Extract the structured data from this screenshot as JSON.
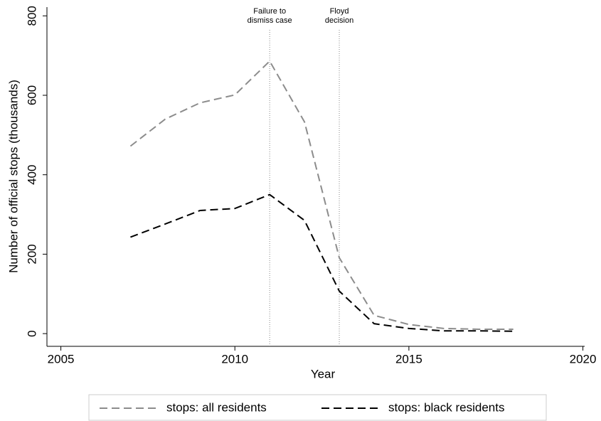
{
  "chart_data": {
    "type": "line",
    "x_label": "Year",
    "y_label": "Number of official stops (thousands)",
    "x": [
      2007,
      2008,
      2009,
      2010,
      2011,
      2012,
      2013,
      2014,
      2015,
      2016,
      2017,
      2018
    ],
    "series": [
      {
        "name": "stops: all residents",
        "color": "#8c8c8c",
        "values": [
          472,
          540,
          581,
          601,
          686,
          533,
          191,
          46,
          23,
          13,
          11,
          11
        ]
      },
      {
        "name": "stops: black residents",
        "color": "#000000",
        "values": [
          243,
          276,
          310,
          315,
          350,
          285,
          107,
          25,
          13,
          7,
          7,
          6
        ]
      }
    ],
    "xlim": [
      2004.6,
      2020.05
    ],
    "xticks": [
      2005,
      2010,
      2015,
      2020
    ],
    "ylim": [
      -32,
      822
    ],
    "yticks": [
      0,
      200,
      400,
      600,
      800
    ],
    "annotations": [
      {
        "x": 2011,
        "lines": [
          "Failure to",
          "dismiss case"
        ]
      },
      {
        "x": 2013,
        "lines": [
          "Floyd",
          "decision"
        ]
      }
    ],
    "legend": "bottom"
  }
}
